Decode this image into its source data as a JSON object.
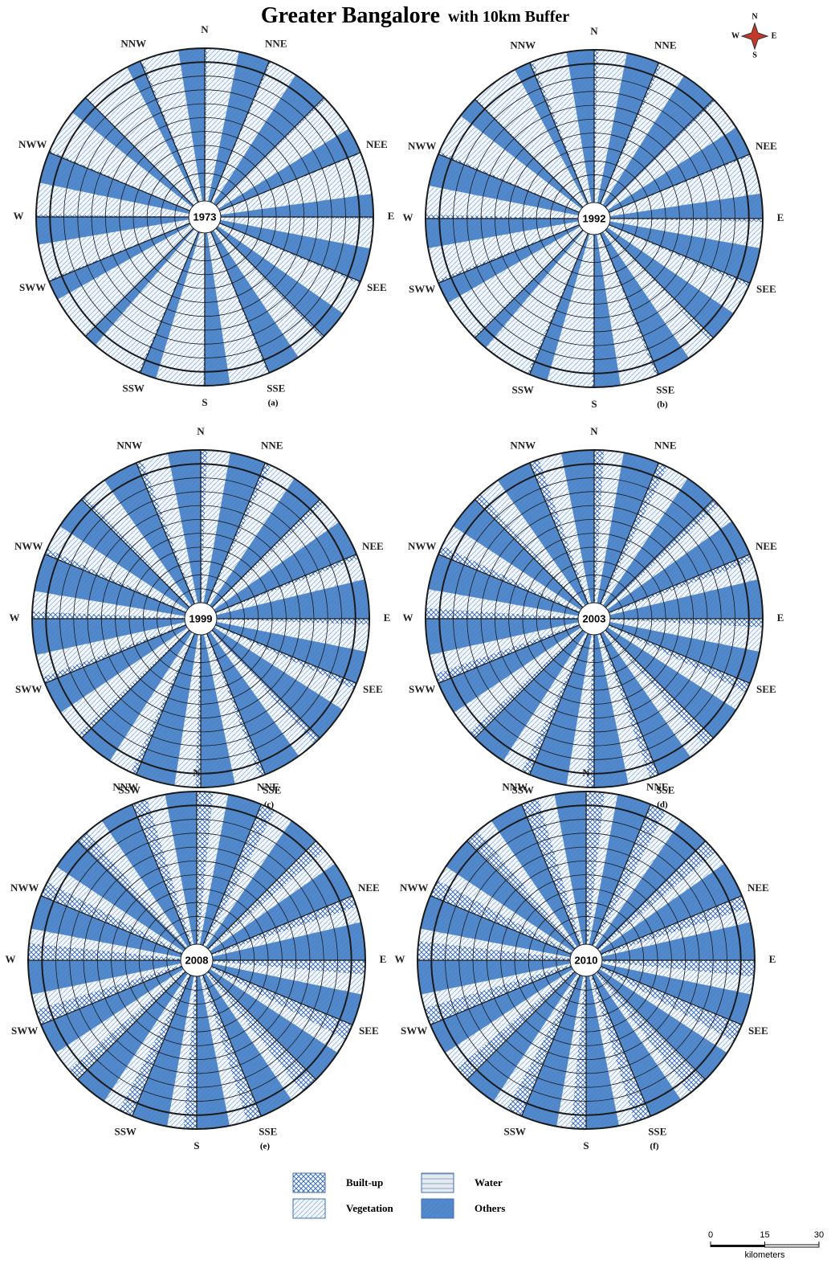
{
  "title": {
    "main": "Greater Bangalore",
    "sub": "with 10km Buffer"
  },
  "compass": {
    "n": "N",
    "e": "E",
    "s": "S",
    "w": "W"
  },
  "directions": [
    "N",
    "NNE",
    null,
    "NEE",
    "E",
    "SEE",
    null,
    "SSE",
    "S",
    "SSW",
    null,
    "SWW",
    "W",
    "NWW",
    null,
    "NNW"
  ],
  "classes": [
    {
      "name": "Built-up",
      "color": "#3f6fb5"
    },
    {
      "name": "Vegetation",
      "color": "#8fb0d8"
    },
    {
      "name": "Water",
      "color": "#7f93a8"
    },
    {
      "name": "Others",
      "color": "#4f86c9"
    }
  ],
  "maps": [
    {
      "year": "1973",
      "label": "(a)",
      "series": [
        [
          4,
          3,
          3,
          2,
          3,
          4,
          5,
          3,
          2,
          3,
          2,
          3,
          4,
          3,
          2,
          4
        ],
        [
          47,
          41,
          57,
          62,
          44,
          51,
          44,
          58,
          72,
          75,
          67,
          55,
          47,
          66,
          76,
          55
        ],
        [
          1,
          1,
          0,
          1,
          1,
          0,
          1,
          1,
          1,
          2,
          1,
          0,
          1,
          1,
          0,
          1
        ],
        [
          48,
          55,
          40,
          35,
          52,
          45,
          50,
          38,
          25,
          20,
          30,
          42,
          48,
          30,
          22,
          40
        ]
      ]
    },
    {
      "year": "1992",
      "label": "(b)",
      "series": [
        [
          6,
          5,
          4,
          3,
          5,
          6,
          7,
          5,
          3,
          4,
          3,
          5,
          6,
          4,
          3,
          6
        ],
        [
          43,
          37,
          51,
          58,
          39,
          46,
          40,
          54,
          68,
          72,
          63,
          50,
          43,
          62,
          72,
          51
        ],
        [
          1,
          1,
          0,
          1,
          1,
          0,
          1,
          1,
          1,
          2,
          1,
          0,
          1,
          1,
          0,
          1
        ],
        [
          50,
          57,
          45,
          38,
          55,
          48,
          52,
          40,
          28,
          22,
          33,
          45,
          50,
          33,
          25,
          42
        ]
      ]
    },
    {
      "year": "1999",
      "label": "(c)",
      "series": [
        [
          10,
          9,
          8,
          7,
          9,
          10,
          12,
          9,
          8,
          9,
          8,
          10,
          11,
          9,
          8,
          10
        ],
        [
          34,
          40,
          36,
          32,
          40,
          34,
          29,
          38,
          31,
          35,
          41,
          34,
          30,
          38,
          36,
          39
        ],
        [
          1,
          1,
          1,
          1,
          1,
          1,
          1,
          1,
          1,
          1,
          1,
          1,
          1,
          1,
          1,
          1
        ],
        [
          55,
          50,
          55,
          60,
          50,
          55,
          58,
          52,
          60,
          55,
          50,
          55,
          58,
          52,
          55,
          50
        ]
      ]
    },
    {
      "year": "2003",
      "label": "(d)",
      "series": [
        [
          15,
          14,
          12,
          11,
          13,
          15,
          17,
          14,
          12,
          13,
          12,
          15,
          16,
          14,
          12,
          15
        ],
        [
          29,
          35,
          30,
          28,
          36,
          29,
          27,
          33,
          29,
          31,
          37,
          29,
          28,
          33,
          32,
          34
        ],
        [
          1,
          1,
          1,
          1,
          1,
          1,
          1,
          1,
          1,
          1,
          1,
          1,
          1,
          1,
          1,
          1
        ],
        [
          55,
          50,
          57,
          60,
          50,
          55,
          55,
          52,
          58,
          55,
          50,
          55,
          55,
          52,
          55,
          50
        ]
      ]
    },
    {
      "year": "2008",
      "label": "(e)",
      "series": [
        [
          25,
          23,
          20,
          18,
          22,
          25,
          28,
          23,
          20,
          22,
          20,
          24,
          26,
          23,
          20,
          24
        ],
        [
          22,
          28,
          24,
          23,
          29,
          22,
          19,
          26,
          24,
          25,
          31,
          23,
          21,
          26,
          27,
          27
        ],
        [
          1,
          1,
          1,
          1,
          1,
          1,
          1,
          1,
          1,
          1,
          1,
          1,
          1,
          1,
          1,
          1
        ],
        [
          52,
          48,
          55,
          58,
          48,
          52,
          52,
          50,
          55,
          52,
          48,
          52,
          52,
          50,
          52,
          48
        ]
      ]
    },
    {
      "year": "2010",
      "label": "(f)",
      "series": [
        [
          28,
          26,
          23,
          21,
          25,
          28,
          31,
          26,
          23,
          25,
          23,
          27,
          29,
          26,
          23,
          27
        ],
        [
          19,
          25,
          21,
          20,
          26,
          19,
          16,
          23,
          21,
          22,
          28,
          20,
          18,
          23,
          24,
          24
        ],
        [
          1,
          1,
          1,
          1,
          1,
          1,
          1,
          1,
          1,
          1,
          1,
          1,
          1,
          1,
          1,
          1
        ],
        [
          52,
          48,
          55,
          58,
          48,
          52,
          52,
          50,
          55,
          52,
          48,
          52,
          52,
          50,
          52,
          48
        ]
      ]
    }
  ],
  "scale_bar": {
    "xlim": [
      0,
      30
    ],
    "ticks": [
      0,
      15,
      30
    ],
    "unit": "kilometers"
  }
}
